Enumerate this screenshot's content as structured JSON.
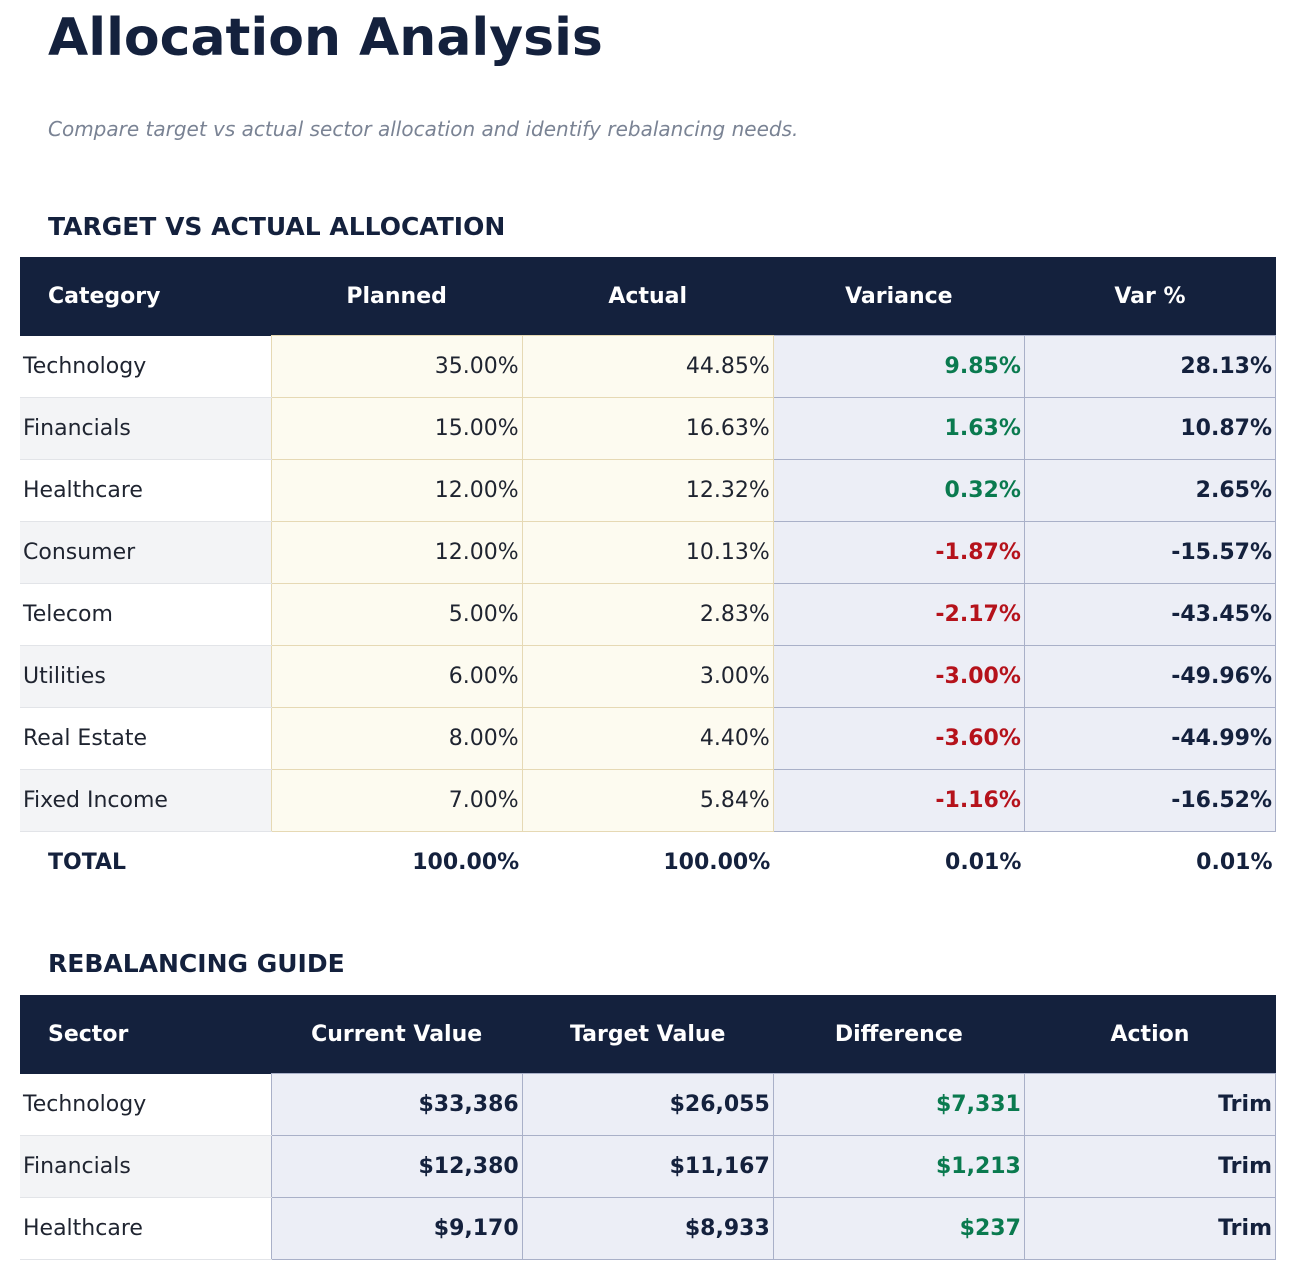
{
  "header": {
    "title": "Allocation Analysis",
    "subtitle": "Compare target vs actual sector allocation and identify rebalancing needs."
  },
  "sections": [
    {
      "heading": "TARGET VS ACTUAL ALLOCATION",
      "columns": [
        "Category",
        "Planned",
        "Actual",
        "Variance",
        "Var %"
      ],
      "rows": [
        [
          "Technology",
          "35.00%",
          "44.85%",
          "9.85%",
          "28.13%"
        ],
        [
          "Financials",
          "15.00%",
          "16.63%",
          "1.63%",
          "10.87%"
        ],
        [
          "Healthcare",
          "12.00%",
          "12.32%",
          "0.32%",
          "2.65%"
        ],
        [
          "Consumer",
          "12.00%",
          "10.13%",
          "-1.87%",
          "-15.57%"
        ],
        [
          "Telecom",
          "5.00%",
          "2.83%",
          "-2.17%",
          "-43.45%"
        ],
        [
          "Utilities",
          "6.00%",
          "3.00%",
          "-3.00%",
          "-49.96%"
        ],
        [
          "Real Estate",
          "8.00%",
          "4.40%",
          "-3.60%",
          "-44.99%"
        ],
        [
          "Fixed Income",
          "7.00%",
          "5.84%",
          "-1.16%",
          "-16.52%"
        ]
      ],
      "total": [
        "TOTAL",
        "100.00%",
        "100.00%",
        "0.01%",
        "0.01%"
      ]
    },
    {
      "heading": "REBALANCING GUIDE",
      "columns": [
        "Sector",
        "Current Value",
        "Target Value",
        "Difference",
        "Action"
      ],
      "rows": [
        [
          "Technology",
          "$33,386",
          "$26,055",
          "$7,331",
          "Trim"
        ],
        [
          "Financials",
          "$12,380",
          "$11,167",
          "$1,213",
          "Trim"
        ],
        [
          "Healthcare",
          "$9,170",
          "$8,933",
          "$237",
          "Trim"
        ]
      ]
    }
  ]
}
